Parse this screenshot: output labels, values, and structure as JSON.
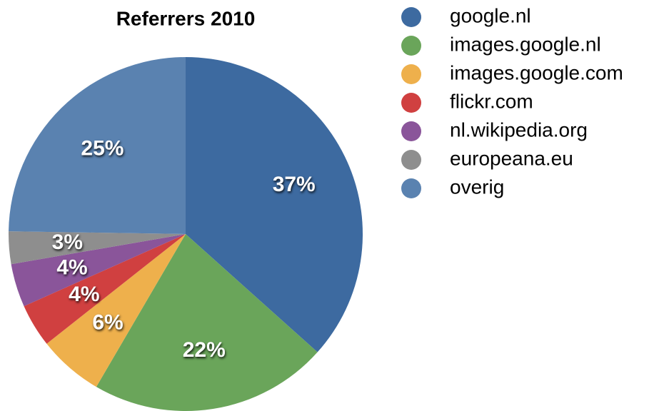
{
  "chart_data": {
    "type": "pie",
    "title": "Referrers 2010",
    "categories": [
      "google.nl",
      "images.google.nl",
      "images.google.com",
      "flickr.com",
      "nl.wikipedia.org",
      "europeana.eu",
      "overig"
    ],
    "values": [
      37,
      22,
      6,
      4,
      4,
      3,
      25
    ],
    "value_labels": [
      "37%",
      "22%",
      "6%",
      "4%",
      "4%",
      "3%",
      "25%"
    ],
    "colors": [
      "#3d6aa0",
      "#6aa55a",
      "#eeb04c",
      "#d04040",
      "#8a559a",
      "#8e8e8e",
      "#5a82b0"
    ],
    "legend": "right"
  }
}
